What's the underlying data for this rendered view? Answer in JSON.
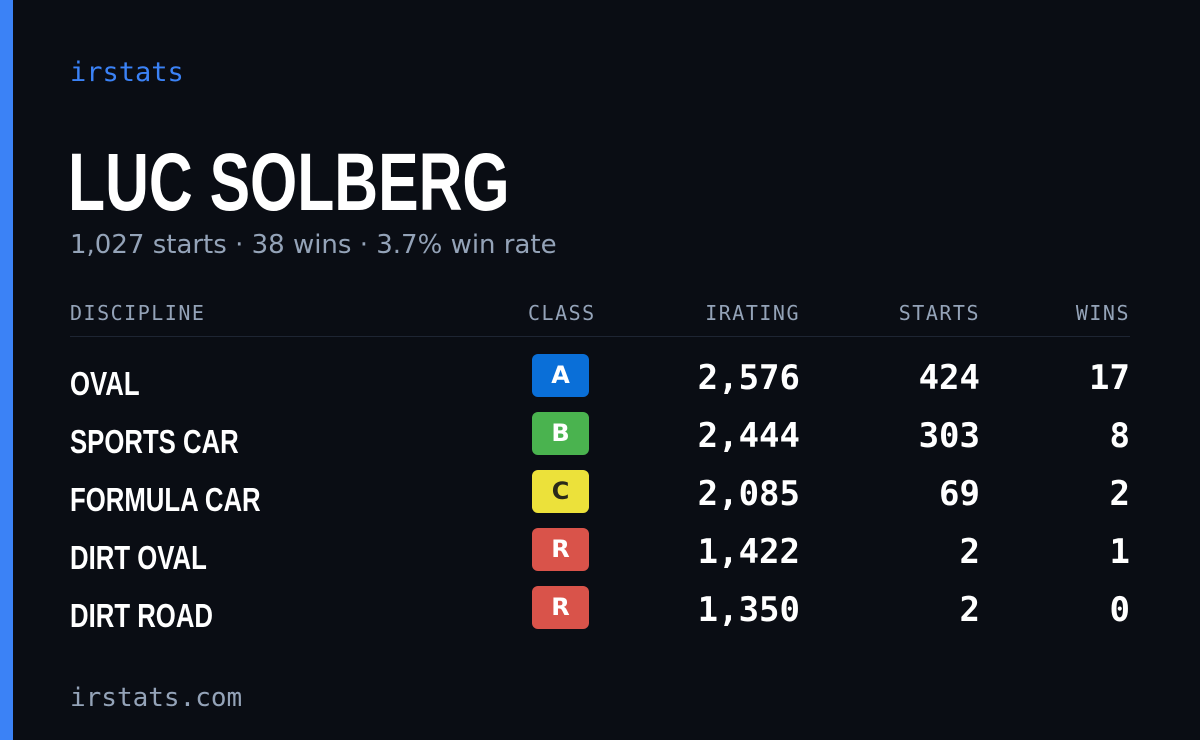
{
  "brand": "irstats",
  "player": {
    "name": "LUC SOLBERG",
    "summary": "1,027 starts · 38 wins · 3.7% win rate"
  },
  "table": {
    "headers": {
      "discipline": "DISCIPLINE",
      "class": "CLASS",
      "irating": "IRATING",
      "starts": "STARTS",
      "wins": "WINS"
    },
    "rows": [
      {
        "discipline": "OVAL",
        "class": "A",
        "irating": "2,576",
        "starts": "424",
        "wins": "17"
      },
      {
        "discipline": "SPORTS CAR",
        "class": "B",
        "irating": "2,444",
        "starts": "303",
        "wins": "8"
      },
      {
        "discipline": "FORMULA CAR",
        "class": "C",
        "irating": "2,085",
        "starts": "69",
        "wins": "2"
      },
      {
        "discipline": "DIRT OVAL",
        "class": "R",
        "irating": "1,422",
        "starts": "2",
        "wins": "1"
      },
      {
        "discipline": "DIRT ROAD",
        "class": "R",
        "irating": "1,350",
        "starts": "2",
        "wins": "0"
      }
    ]
  },
  "class_colors": {
    "A": {
      "bg": "#0a6fd8",
      "fg": "#ffffff"
    },
    "B": {
      "bg": "#4ab34f",
      "fg": "#ffffff"
    },
    "C": {
      "bg": "#ece13a",
      "fg": "#2a2a1a"
    },
    "R": {
      "bg": "#d9534a",
      "fg": "#ffffff"
    }
  },
  "colors": {
    "background": "#0a0d14",
    "accent": "#3b82f6",
    "muted_text": "#94a3b8"
  },
  "footer": {
    "url": "irstats.com"
  }
}
